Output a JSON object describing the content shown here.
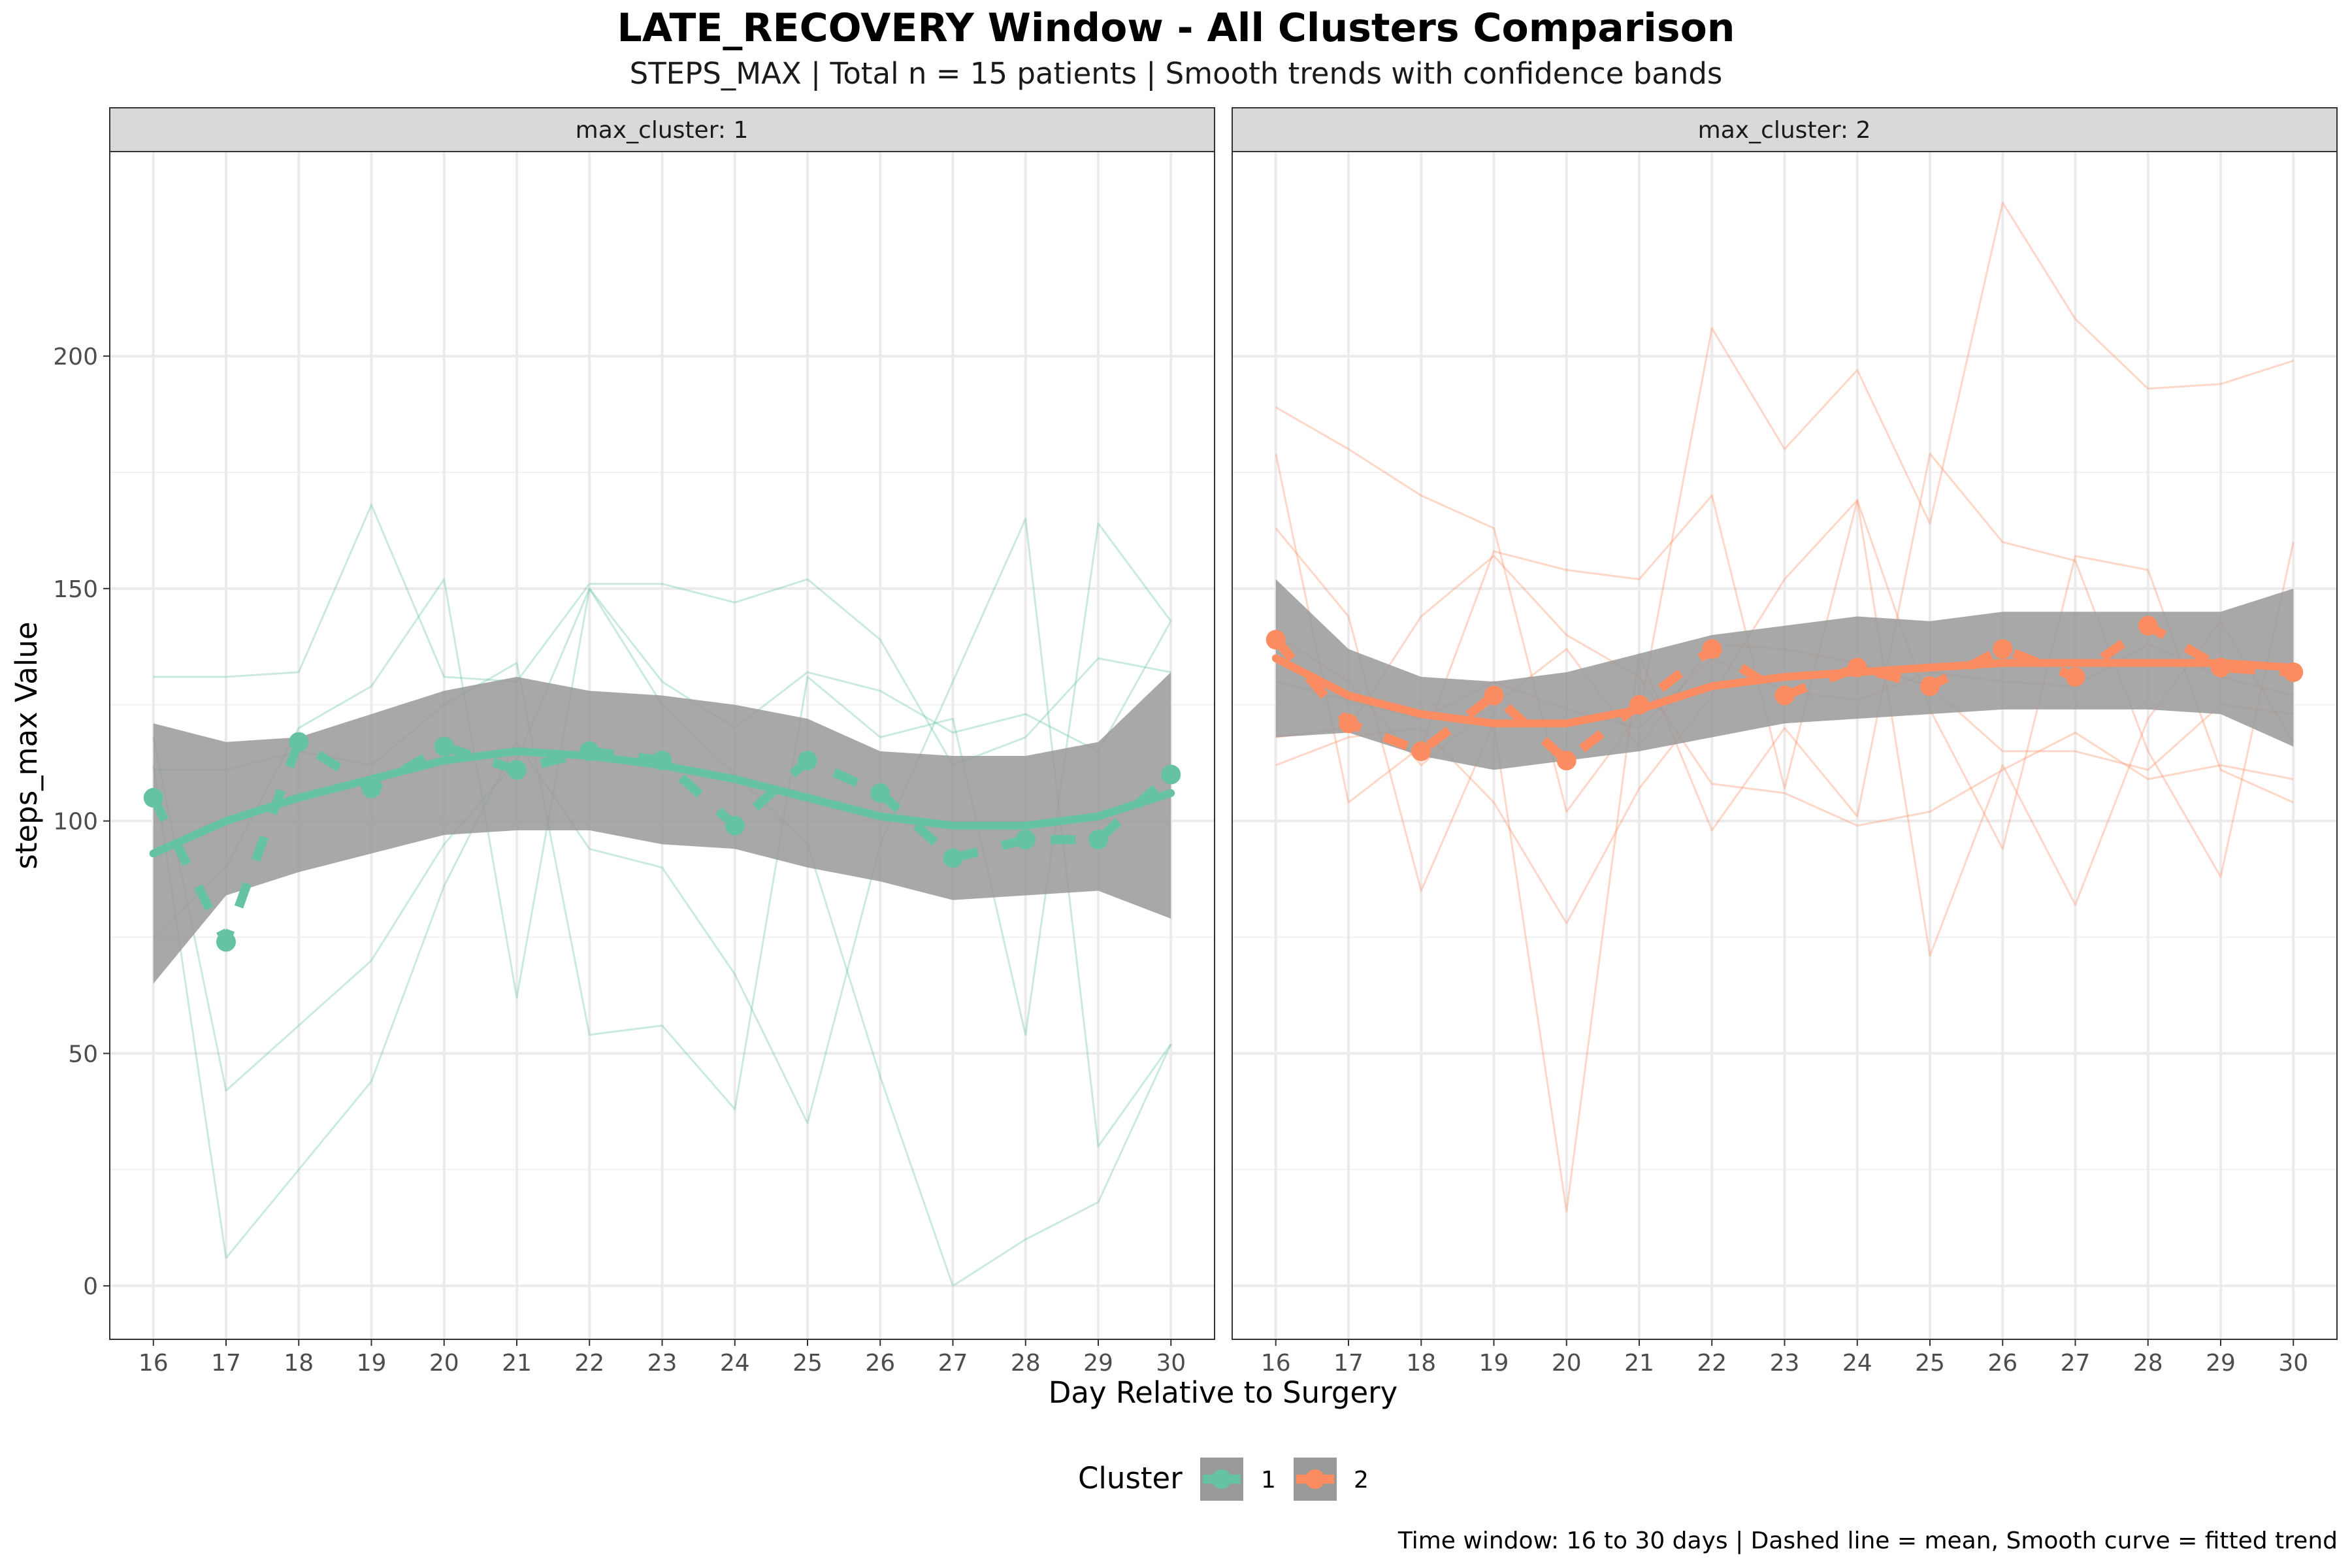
{
  "chart_data": {
    "type": "line",
    "title": "LATE_RECOVERY Window - All Clusters Comparison",
    "subtitle": "STEPS_MAX | Total n = 15 patients | Smooth trends with confidence bands",
    "xlabel": "Day Relative to Surgery",
    "ylabel": "steps_max Value",
    "caption": "Time window: 16 to 30 days | Dashed line = mean, Smooth curve = fitted trend",
    "xlim": [
      15.4,
      30.6
    ],
    "ylim": [
      -11.5,
      244
    ],
    "x_ticks": [
      16,
      17,
      18,
      19,
      20,
      21,
      22,
      23,
      24,
      25,
      26,
      27,
      28,
      29,
      30
    ],
    "y_ticks": [
      0,
      50,
      100,
      150,
      200
    ],
    "legend": {
      "title": "Cluster",
      "position": "bottom",
      "entries": [
        {
          "label": "1",
          "color": "#66C2A5"
        },
        {
          "label": "2",
          "color": "#FC8D62"
        }
      ]
    },
    "band_color": "#999999",
    "x": [
      16,
      17,
      18,
      19,
      20,
      21,
      22,
      23,
      24,
      25,
      26,
      27,
      28,
      29,
      30
    ],
    "panels": [
      {
        "strip_label": "max_cluster: 1",
        "cluster": "1",
        "color": "#66C2A5",
        "mean": [
          105,
          74,
          117,
          107,
          116,
          111,
          115,
          113,
          99,
          113,
          106,
          92,
          96,
          96,
          110
        ],
        "smooth": [
          93,
          100,
          105,
          109,
          113,
          115,
          114,
          112,
          109,
          105,
          101,
          99,
          99,
          101,
          106
        ],
        "band_lower": [
          65,
          84,
          89,
          93,
          97,
          98,
          98,
          95,
          94,
          90,
          87,
          83,
          84,
          85,
          79
        ],
        "band_upper": [
          121,
          117,
          118,
          123,
          128,
          131,
          128,
          127,
          125,
          122,
          115,
          114,
          114,
          117,
          132
        ],
        "patients": [
          [
            131,
            131,
            132,
            168,
            131,
            130,
            151,
            151,
            147,
            152,
            139,
            112,
            118,
            135,
            132
          ],
          [
            118,
            42,
            56,
            70,
            95,
            113,
            150,
            130,
            120,
            132,
            128,
            119,
            123,
            115,
            143
          ],
          [
            112,
            6,
            25,
            44,
            86,
            117,
            94,
            90,
            67,
            35,
            95,
            130,
            165,
            30,
            52
          ],
          [
            75,
            90,
            120,
            129,
            152,
            62,
            150,
            125,
            110,
            95,
            45,
            0,
            10,
            18,
            52
          ],
          [
            111,
            111,
            115,
            112,
            125,
            134,
            54,
            56,
            38,
            131,
            118,
            122,
            54,
            164,
            143
          ]
        ]
      },
      {
        "strip_label": "max_cluster: 2",
        "cluster": "2",
        "color": "#FC8D62",
        "mean": [
          139,
          121,
          115,
          127,
          113,
          125,
          137,
          127,
          133,
          129,
          137,
          131,
          142,
          133,
          132
        ],
        "smooth": [
          135,
          127,
          123,
          121,
          121,
          124,
          129,
          131,
          132,
          133,
          134,
          134,
          134,
          134,
          133
        ],
        "band_lower": [
          118,
          119,
          114,
          111,
          113,
          115,
          118,
          121,
          122,
          123,
          124,
          124,
          124,
          123,
          116
        ],
        "band_upper": [
          152,
          137,
          131,
          130,
          132,
          136,
          140,
          142,
          144,
          143,
          145,
          145,
          145,
          145,
          150
        ],
        "patients": [
          [
            189,
            180,
            170,
            163,
            102,
            123,
            206,
            180,
            197,
            164,
            233,
            208,
            193,
            194,
            199
          ],
          [
            179,
            104,
            116,
            158,
            154,
            152,
            170,
            107,
            169,
            124,
            94,
            157,
            154,
            111,
            104
          ],
          [
            163,
            144,
            85,
            121,
            16,
            136,
            98,
            120,
            101,
            179,
            160,
            156,
            115,
            88,
            160
          ],
          [
            118,
            120,
            144,
            157,
            140,
            131,
            108,
            106,
            99,
            102,
            111,
            119,
            109,
            112,
            109
          ],
          [
            112,
            118,
            120,
            104,
            78,
            107,
            127,
            152,
            169,
            71,
            112,
            82,
            122,
            143,
            117
          ],
          [
            140,
            130,
            112,
            125,
            137,
            116,
            138,
            137,
            134,
            129,
            115,
            115,
            111,
            125,
            123
          ],
          [
            130,
            126,
            122,
            130,
            124,
            120,
            135,
            128,
            126,
            132,
            130,
            129,
            138,
            131,
            127
          ]
        ]
      }
    ]
  }
}
